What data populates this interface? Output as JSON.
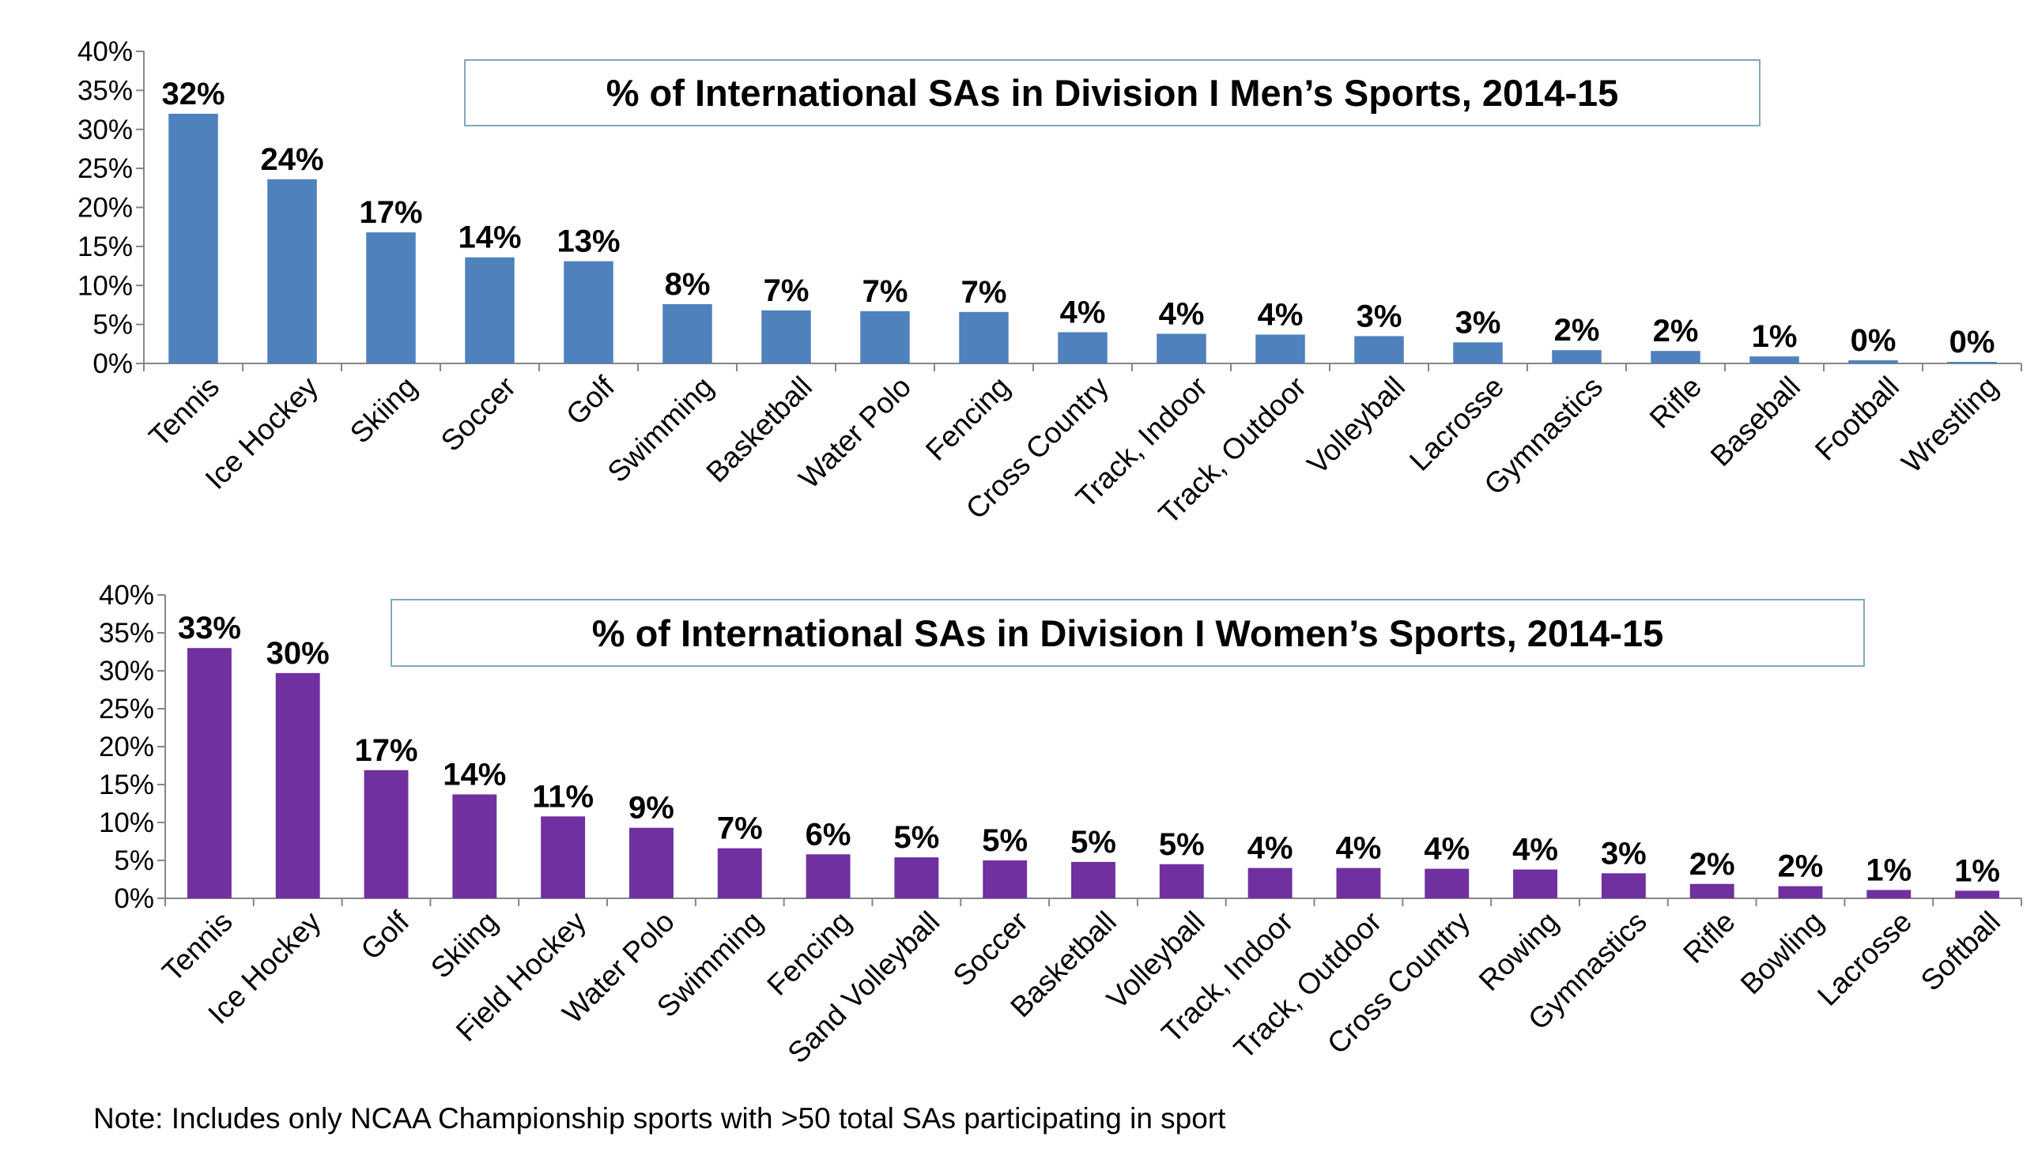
{
  "chart_data": [
    {
      "type": "bar",
      "title": "% of International SAs in Division I Men’s Sports, 2014-15",
      "categories": [
        "Tennis",
        "Ice Hockey",
        "Skiing",
        "Soccer",
        "Golf",
        "Swimming",
        "Basketball",
        "Water Polo",
        "Fencing",
        "Cross Country",
        "Track, Indoor",
        "Track, Outdoor",
        "Volleyball",
        "Lacrosse",
        "Gymnastics",
        "Rifle",
        "Baseball",
        "Football",
        "Wrestling"
      ],
      "values": [
        32,
        23.6,
        16.8,
        13.6,
        13.1,
        7.6,
        6.8,
        6.7,
        6.6,
        4.0,
        3.8,
        3.7,
        3.5,
        2.7,
        1.7,
        1.6,
        0.9,
        0.4,
        0.2
      ],
      "data_labels": [
        "32%",
        "24%",
        "17%",
        "14%",
        "13%",
        "8%",
        "7%",
        "7%",
        "7%",
        "4%",
        "4%",
        "4%",
        "3%",
        "3%",
        "2%",
        "2%",
        "1%",
        "0%",
        "0%"
      ],
      "y_ticks": [
        "0%",
        "5%",
        "10%",
        "15%",
        "20%",
        "25%",
        "30%",
        "35%",
        "40%"
      ],
      "ylim": [
        0,
        40
      ],
      "bar_color": "#4f81bd",
      "grid": false,
      "legend": "none"
    },
    {
      "type": "bar",
      "title": "% of International SAs in Division I Women’s Sports, 2014-15",
      "categories": [
        "Tennis",
        "Ice Hockey",
        "Golf",
        "Skiing",
        "Field Hockey",
        "Water Polo",
        "Swimming",
        "Fencing",
        "Sand Volleyball",
        "Soccer",
        "Basketball",
        "Volleyball",
        "Track, Indoor",
        "Track, Outdoor",
        "Cross Country",
        "Rowing",
        "Gymnastics",
        "Rifle",
        "Bowling",
        "Lacrosse",
        "Softball"
      ],
      "values": [
        33,
        29.7,
        16.9,
        13.7,
        10.8,
        9.3,
        6.6,
        5.8,
        5.4,
        5.0,
        4.8,
        4.5,
        4.0,
        4.0,
        3.9,
        3.8,
        3.3,
        1.9,
        1.6,
        1.1,
        1.0
      ],
      "data_labels": [
        "33%",
        "30%",
        "17%",
        "14%",
        "11%",
        "9%",
        "7%",
        "6%",
        "5%",
        "5%",
        "5%",
        "5%",
        "4%",
        "4%",
        "4%",
        "4%",
        "3%",
        "2%",
        "2%",
        "1%",
        "1%"
      ],
      "y_ticks": [
        "0%",
        "5%",
        "10%",
        "15%",
        "20%",
        "25%",
        "30%",
        "35%",
        "40%"
      ],
      "ylim": [
        0,
        40
      ],
      "bar_color": "#7030a0",
      "grid": false,
      "legend": "none"
    }
  ],
  "note": "Note: Includes only NCAA Championship sports with >50 total SAs participating in sport"
}
